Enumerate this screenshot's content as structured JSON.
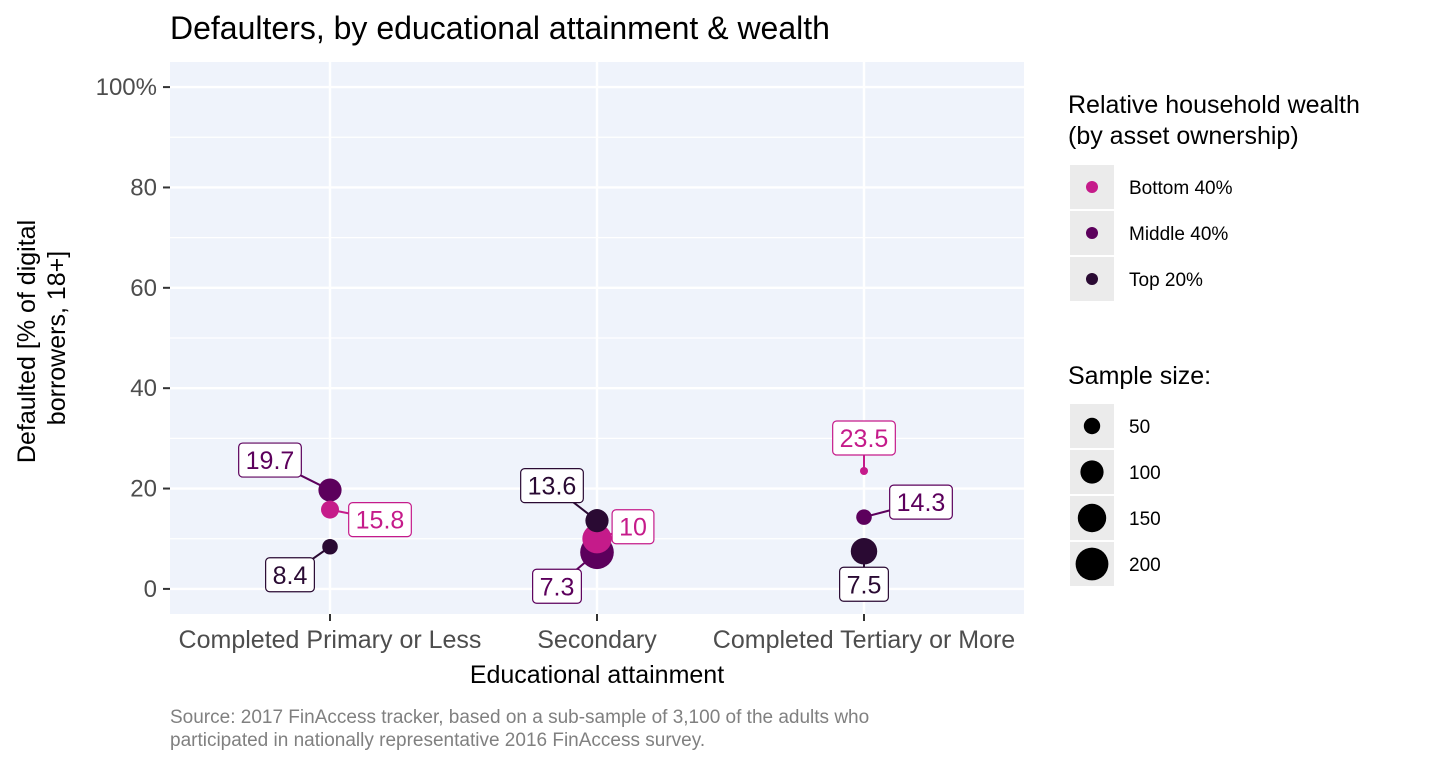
{
  "chart_data": {
    "type": "scatter",
    "title": "Defaulters, by educational attainment & wealth",
    "xlabel": "Educational attainment",
    "ylabel": [
      "Defaulted [% of digital",
      "borrowers, 18+]"
    ],
    "categories": [
      "Completed Primary or Less",
      "Secondary",
      "Completed Tertiary or More"
    ],
    "ylim": [
      -5,
      105
    ],
    "yticks": [
      0,
      20,
      40,
      60,
      80,
      100
    ],
    "ytick_labels": [
      "0",
      "20",
      "40",
      "60",
      "80",
      "100%"
    ],
    "grid": true,
    "series": [
      {
        "name": "Bottom 40%",
        "color": "#c51b8a",
        "values": [
          15.8,
          10,
          23.5
        ],
        "sizes": [
          60,
          160,
          12
        ]
      },
      {
        "name": "Middle 40%",
        "color": "#5c005c",
        "values": [
          19.7,
          7.3,
          14.3
        ],
        "sizes": [
          100,
          210,
          45
        ]
      },
      {
        "name": "Top 20%",
        "color": "#2a0a33",
        "values": [
          8.4,
          13.6,
          7.5
        ],
        "sizes": [
          45,
          100,
          130
        ]
      }
    ],
    "point_labels": [
      {
        "text": "15.8",
        "series": 0,
        "category": 0
      },
      {
        "text": "10",
        "series": 0,
        "category": 1
      },
      {
        "text": "23.5",
        "series": 0,
        "category": 2
      },
      {
        "text": "19.7",
        "series": 1,
        "category": 0
      },
      {
        "text": "7.3",
        "series": 1,
        "category": 1
      },
      {
        "text": "14.3",
        "series": 1,
        "category": 2
      },
      {
        "text": "8.4",
        "series": 2,
        "category": 0
      },
      {
        "text": "13.6",
        "series": 2,
        "category": 1
      },
      {
        "text": "7.5",
        "series": 2,
        "category": 2
      }
    ],
    "legend_color": {
      "title": [
        "Relative household wealth",
        "(by asset ownership)"
      ],
      "entries": [
        "Bottom 40%",
        "Middle 40%",
        "Top 20%"
      ]
    },
    "legend_size": {
      "title": "Sample size:",
      "entries": [
        50,
        100,
        150,
        200
      ]
    },
    "legend_placement": "right",
    "caption": [
      "Source: 2017 FinAccess tracker, based on a sub-sample of 3,100 of the adults who",
      "participated in nationally representative 2016 FinAccess survey."
    ]
  }
}
